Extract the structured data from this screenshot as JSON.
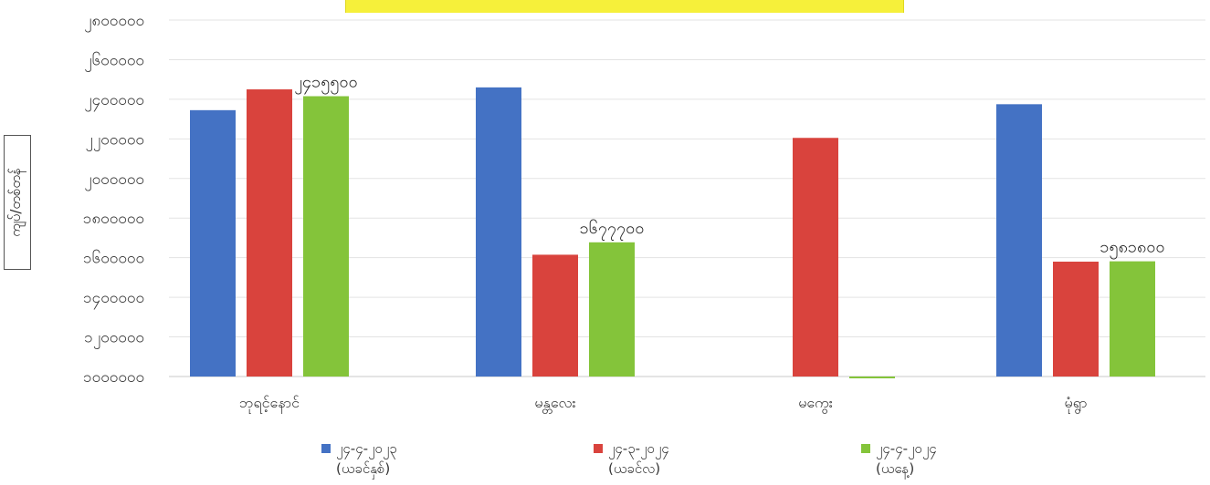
{
  "chart_data": {
    "type": "bar",
    "title": "",
    "ylabel": "ကျပ်/တစ်တန်",
    "ylim": [
      1000000,
      2800000
    ],
    "yticks": [
      1000000,
      1200000,
      1400000,
      1600000,
      1800000,
      2000000,
      2200000,
      2400000,
      2600000,
      2800000
    ],
    "ytick_labels": [
      "၁၀၀၀၀၀၀",
      "၁၂၀၀၀၀၀",
      "၁၄၀၀၀၀၀",
      "၁၆၀၀၀၀၀",
      "၁၈၀၀၀၀၀",
      "၂၀၀၀၀၀၀",
      "၂၂၀၀၀၀၀",
      "၂၄၀၀၀၀၀",
      "၂၆၀၀၀၀၀",
      "၂၈၀၀၀၀၀"
    ],
    "categories": [
      "ဘုရင့်နောင်",
      "မန္တလေး",
      "မကွေး",
      "မုံရွာ"
    ],
    "series": [
      {
        "name": "၂၄-၄-၂၀၂၃ (ယခင်နှစ်)",
        "color": "#4472c4",
        "values": [
          2345000,
          2460000,
          null,
          2375000
        ]
      },
      {
        "name": "၂၄-၃-၂၀၂၄ (ယခင်လ)",
        "color": "#d9433d",
        "values": [
          2450000,
          1615000,
          2205000,
          1580000
        ]
      },
      {
        "name": "၂၄-၄-၂၀၂၄ (ယနေ့)",
        "color": "#84c43a",
        "values": [
          2415500,
          1677700,
          995000,
          1581800
        ]
      }
    ],
    "data_labels": [
      {
        "category": 0,
        "series": 2,
        "text": "၂၄၁၅၅၀၀"
      },
      {
        "category": 1,
        "series": 2,
        "text": "၁၆၇၇၇၀၀"
      },
      {
        "category": 3,
        "series": 2,
        "text": "၁၅၈၁၈၀၀"
      }
    ],
    "grid": true,
    "legend": "bottom"
  },
  "colors": {
    "title_strip": "#f6f03a",
    "grid": "#e3e3e3",
    "axis": "#c8c8c8"
  }
}
